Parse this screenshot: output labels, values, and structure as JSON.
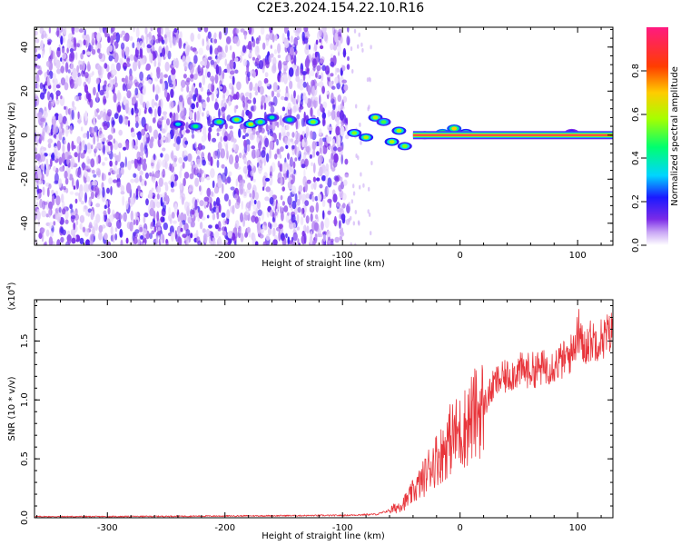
{
  "title": "C2E3.2024.154.22.10.R16",
  "colors": {
    "spectrum_low": "#7B2BE8",
    "spectrum_line": "#E8353B",
    "snr_line": "#E8353B"
  },
  "chart_data": [
    {
      "type": "heatmap",
      "title": "C2E3.2024.154.22.10.R16",
      "xlabel": "Height of straight line (km)",
      "ylabel": "Frequency (Hz)",
      "xlim": [
        -362,
        130
      ],
      "ylim": [
        -50,
        49
      ],
      "xticks": [
        -300,
        -200,
        -100,
        0,
        100
      ],
      "xtick_labels": [
        "-300",
        "-200",
        "-100",
        "0",
        "100"
      ],
      "yticks": [
        -40,
        -20,
        0,
        20,
        40
      ],
      "ytick_labels": [
        "-40",
        "-20",
        "0",
        "20",
        "40"
      ],
      "colorbar": {
        "label": "Normalized spectral amplitude",
        "range": [
          0.0,
          1.0
        ],
        "ticks": [
          0.0,
          0.2,
          0.4,
          0.6,
          0.8
        ],
        "tick_labels": [
          "0.0",
          "0.2",
          "0.4",
          "0.6",
          "0.8"
        ]
      },
      "noise_region_x": [
        -362,
        -95
      ],
      "carrier_line": {
        "x_start": -40,
        "x_end": 130,
        "frequency_hz": 0,
        "amplitude": 0.95
      },
      "blobs": [
        {
          "x": -240,
          "f": 5,
          "a": 0.35
        },
        {
          "x": -225,
          "f": 4,
          "a": 0.45
        },
        {
          "x": -205,
          "f": 6,
          "a": 0.5
        },
        {
          "x": -190,
          "f": 7,
          "a": 0.55
        },
        {
          "x": -178,
          "f": 5,
          "a": 0.6
        },
        {
          "x": -170,
          "f": 6,
          "a": 0.5
        },
        {
          "x": -160,
          "f": 8,
          "a": 0.4
        },
        {
          "x": -145,
          "f": 7,
          "a": 0.45
        },
        {
          "x": -125,
          "f": 6,
          "a": 0.55
        },
        {
          "x": -90,
          "f": 1,
          "a": 0.55
        },
        {
          "x": -80,
          "f": -1,
          "a": 0.6
        },
        {
          "x": -72,
          "f": 8,
          "a": 0.6
        },
        {
          "x": -65,
          "f": 6,
          "a": 0.5
        },
        {
          "x": -58,
          "f": -3,
          "a": 0.6
        },
        {
          "x": -52,
          "f": 2,
          "a": 0.6
        },
        {
          "x": -47,
          "f": -5,
          "a": 0.55
        },
        {
          "x": -30,
          "f": 0,
          "a": 0.7
        },
        {
          "x": -15,
          "f": 1,
          "a": 0.75
        },
        {
          "x": -5,
          "f": 3,
          "a": 0.7
        },
        {
          "x": 5,
          "f": 1,
          "a": 0.6
        },
        {
          "x": 95,
          "f": 1,
          "a": 0.35
        }
      ]
    },
    {
      "type": "line",
      "xlabel": "Height of straight line (km)",
      "ylabel": "SNR (10 * v/v)",
      "y_multiplier": "(x10",
      "y_multiplier_exp": "4",
      "y_multiplier_close": ")",
      "xlim": [
        -362,
        130
      ],
      "ylim": [
        0.0,
        1.85
      ],
      "xticks": [
        -300,
        -200,
        -100,
        0,
        100
      ],
      "xtick_labels": [
        "-300",
        "-200",
        "-100",
        "0",
        "100"
      ],
      "yticks": [
        0.0,
        0.5,
        1.0,
        1.5
      ],
      "ytick_labels": [
        "0.0",
        "0.5",
        "1.0",
        "1.5"
      ],
      "series": [
        {
          "x": [
            -362,
            -300,
            -200,
            -100,
            -70,
            -55,
            -45,
            -40,
            -35,
            -30,
            -25,
            -20,
            -15,
            -10,
            -5,
            0,
            5,
            10,
            15,
            20,
            25,
            30,
            40,
            50,
            60,
            70,
            80,
            90,
            95,
            100,
            105,
            110,
            120,
            130
          ],
          "y": [
            0.01,
            0.01,
            0.015,
            0.02,
            0.03,
            0.08,
            0.15,
            0.22,
            0.28,
            0.35,
            0.45,
            0.5,
            0.55,
            0.65,
            0.7,
            0.72,
            0.78,
            0.85,
            0.9,
            0.95,
            1.05,
            1.15,
            1.2,
            1.25,
            1.25,
            1.27,
            1.3,
            1.35,
            1.4,
            1.55,
            1.45,
            1.5,
            1.52,
            1.58
          ]
        }
      ]
    }
  ]
}
